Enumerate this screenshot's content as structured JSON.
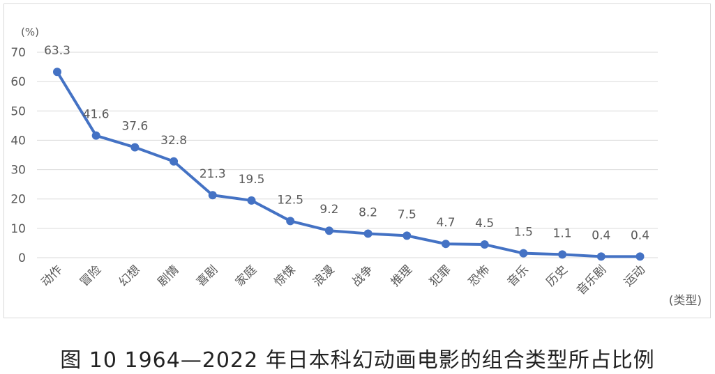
{
  "chart_data": {
    "type": "line",
    "ylabel": "(%)",
    "xlabel": "(类型)",
    "ylim": [
      0,
      70
    ],
    "yticks": [
      0,
      10,
      20,
      30,
      40,
      50,
      60,
      70
    ],
    "categories": [
      "动作",
      "冒险",
      "幻想",
      "剧情",
      "喜剧",
      "家庭",
      "惊悚",
      "浪漫",
      "战争",
      "推理",
      "犯罪",
      "恐怖",
      "音乐",
      "历史",
      "音乐剧",
      "运动"
    ],
    "values": [
      63.3,
      41.6,
      37.6,
      32.8,
      21.3,
      19.5,
      12.5,
      9.2,
      8.2,
      7.5,
      4.7,
      4.5,
      1.5,
      1.1,
      0.4,
      0.4
    ],
    "data_labels": [
      "63.3",
      "41.6",
      "37.6",
      "32.8",
      "21.3",
      "19.5",
      "12.5",
      "9.2",
      "8.2",
      "7.5",
      "4.7",
      "4.5",
      "1.5",
      "1.1",
      "0.4",
      "0.4"
    ],
    "grid": true,
    "line_color": "#4472c4",
    "grid_color": "#d9d9d9",
    "label_color": "#595959"
  },
  "caption": "图 10  1964—2022 年日本科幻动画电影的组合类型所占比例"
}
